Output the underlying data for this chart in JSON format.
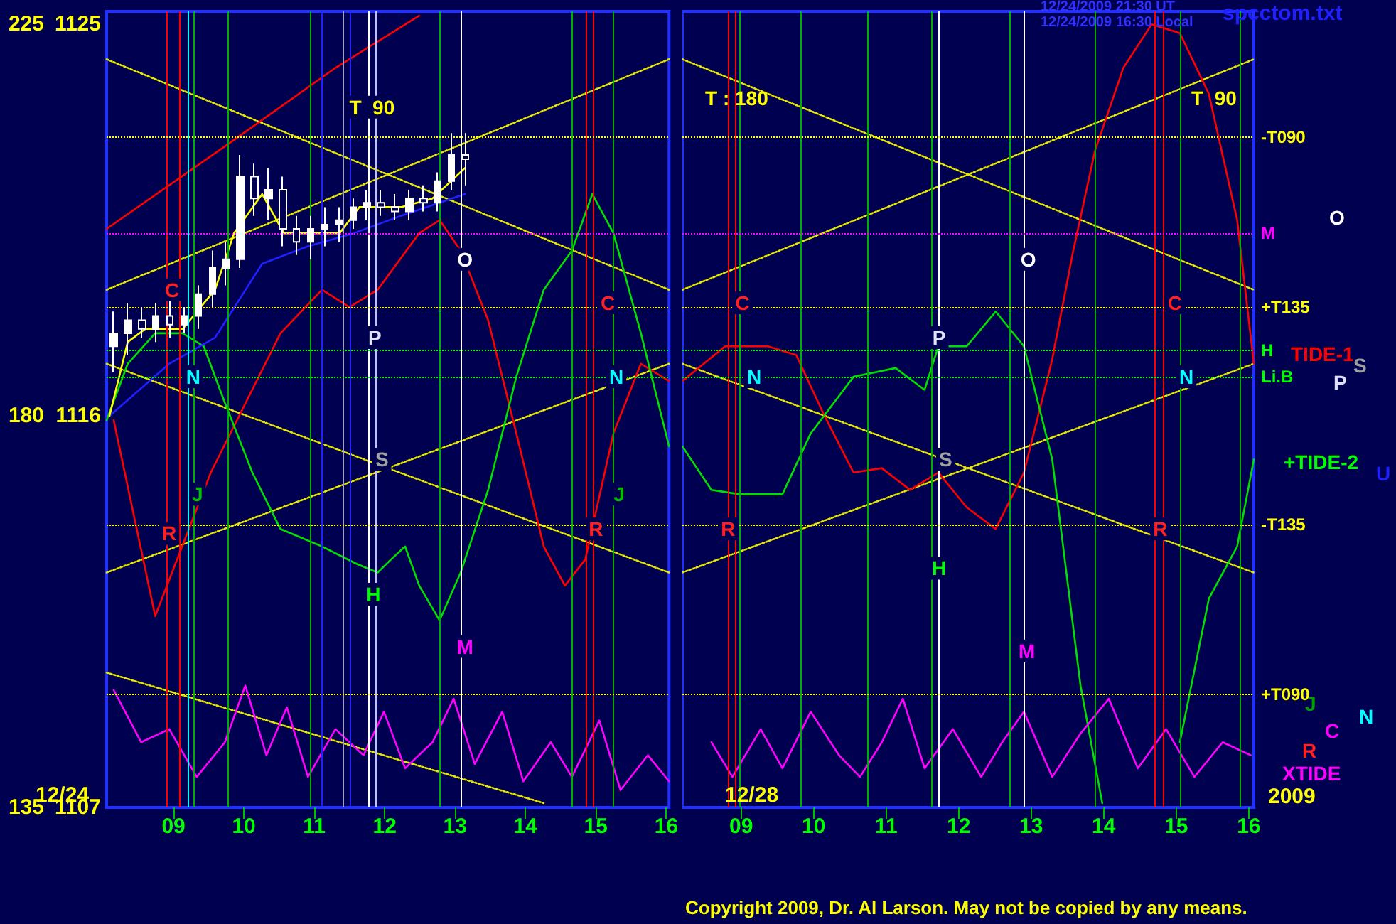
{
  "chart_data": [
    {
      "type": "line",
      "xlim": [
        8.05,
        16.04
      ],
      "ylim": [
        1107,
        1125.3
      ],
      "y2lim": [
        135,
        226.5
      ],
      "xticks": [
        {
          "value": 9,
          "label": "09"
        },
        10,
        11,
        12,
        13,
        14,
        15,
        16
      ],
      "yticks": [
        1107,
        1116,
        1125
      ],
      "y2ticks": [
        135,
        180,
        225
      ],
      "grid": false,
      "marker": "none",
      "line_style": "solid",
      "series": [
        {
          "line_style": "dotted",
          "color": "#e8e800",
          "x": [
            8.05,
            16.04
          ],
          "values": [
            1124.2,
            1118.9
          ]
        },
        {
          "line_style": "dotted",
          "color": "#e8e800",
          "x": [
            8.05,
            16.04
          ],
          "values": [
            1118.9,
            1124.2
          ]
        },
        {
          "line_style": "dotted",
          "color": "#e8e800",
          "x": [
            8.05,
            16.04
          ],
          "values": [
            1112.4,
            1117.2
          ]
        },
        {
          "line_style": "dotted",
          "color": "#e8e800",
          "x": [
            8.05,
            16.04
          ],
          "values": [
            1117.2,
            1112.4
          ]
        },
        {
          "line_style": "dotted",
          "color": "#e8e800",
          "x": [
            8.05,
            14.26
          ],
          "values": [
            1110.1,
            1107.1
          ]
        },
        {
          "color": "#ff0000",
          "x": [
            8.05,
            9.82,
            11.3,
            12.49
          ],
          "values": [
            1120.3,
            1122.3,
            1124.0,
            1125.2
          ]
        },
        {
          "color": "#ff0000",
          "x": [
            8.15,
            8.74,
            9.53,
            10.52,
            11.11,
            11.5,
            11.9,
            12.49,
            12.78,
            13.08,
            13.47,
            13.87,
            14.26,
            14.56,
            14.85,
            15.25,
            15.64,
            16.04
          ],
          "values": [
            1115.9,
            1111.4,
            1114.7,
            1117.9,
            1118.9,
            1118.5,
            1118.9,
            1120.2,
            1120.5,
            1119.8,
            1118.2,
            1115.6,
            1113.0,
            1112.1,
            1112.7,
            1115.6,
            1117.2,
            1116.8
          ]
        },
        {
          "color": "#00e000",
          "x": [
            8.05,
            8.35,
            8.74,
            9.13,
            9.43,
            9.73,
            10.12,
            10.52,
            11.11,
            11.6,
            11.9,
            12.09,
            12.29,
            12.49,
            12.78,
            13.08,
            13.47,
            13.87,
            14.26,
            14.66,
            14.95,
            15.25,
            15.64,
            16.04
          ],
          "values": [
            1115.9,
            1117.2,
            1117.9,
            1117.9,
            1117.6,
            1116.3,
            1114.7,
            1113.4,
            1113.0,
            1112.6,
            1112.4,
            1112.7,
            1113.0,
            1112.1,
            1111.3,
            1112.4,
            1114.3,
            1116.9,
            1118.9,
            1119.8,
            1121.1,
            1120.2,
            1117.9,
            1115.3
          ]
        },
        {
          "color": "#ff00ff",
          "x": [
            8.15,
            8.54,
            8.94,
            9.33,
            9.73,
            10.02,
            10.32,
            10.61,
            10.91,
            11.3,
            11.7,
            11.99,
            12.29,
            12.68,
            12.98,
            13.28,
            13.67,
            13.97,
            14.36,
            14.66,
            15.05,
            15.35,
            15.74,
            16.04
          ],
          "values": [
            1109.7,
            1108.5,
            1108.8,
            1107.7,
            1108.5,
            1109.8,
            1108.2,
            1109.3,
            1107.7,
            1108.8,
            1108.2,
            1109.2,
            1107.9,
            1108.5,
            1109.5,
            1108.0,
            1109.2,
            1107.6,
            1108.5,
            1107.7,
            1109.0,
            1107.4,
            1108.2,
            1107.6
          ]
        },
        {
          "color": "#2020ff",
          "x": [
            8.09,
            8.94,
            9.59,
            10.26,
            10.91,
            11.56,
            12.23,
            13.14
          ],
          "values": [
            1116.0,
            1117.2,
            1117.8,
            1119.5,
            1119.9,
            1120.2,
            1120.6,
            1121.1
          ]
        },
        {
          "type": "candlestick",
          "color": "#ffffff",
          "x": [
            8.15,
            8.35,
            8.55,
            8.75,
            8.95,
            9.15,
            9.35,
            9.55,
            9.75,
            9.95,
            10.15,
            10.35,
            10.55,
            10.75,
            10.95,
            11.15,
            11.35,
            11.55,
            11.75,
            11.95,
            12.15,
            12.35,
            12.55,
            12.75,
            12.95,
            13.15
          ],
          "ohlc": [
            [
              1117.6,
              1118.4,
              1117.0,
              1117.9
            ],
            [
              1117.9,
              1118.6,
              1117.4,
              1118.2
            ],
            [
              1118.2,
              1118.5,
              1117.8,
              1118.0
            ],
            [
              1118.0,
              1118.6,
              1117.7,
              1118.3
            ],
            [
              1118.3,
              1118.7,
              1117.8,
              1118.1
            ],
            [
              1118.1,
              1118.5,
              1117.9,
              1118.3
            ],
            [
              1118.3,
              1119.0,
              1118.0,
              1118.8
            ],
            [
              1118.8,
              1119.8,
              1118.5,
              1119.4
            ],
            [
              1119.4,
              1120.0,
              1119.0,
              1119.6
            ],
            [
              1119.6,
              1122.0,
              1119.4,
              1121.5
            ],
            [
              1121.5,
              1121.8,
              1120.6,
              1121.0
            ],
            [
              1121.0,
              1121.7,
              1120.5,
              1121.2
            ],
            [
              1121.2,
              1121.5,
              1119.9,
              1120.3
            ],
            [
              1120.3,
              1120.6,
              1119.7,
              1120.0
            ],
            [
              1120.0,
              1120.6,
              1119.6,
              1120.3
            ],
            [
              1120.3,
              1120.8,
              1119.9,
              1120.4
            ],
            [
              1120.4,
              1120.8,
              1120.0,
              1120.5
            ],
            [
              1120.5,
              1121.0,
              1120.3,
              1120.8
            ],
            [
              1120.8,
              1121.2,
              1120.5,
              1120.9
            ],
            [
              1120.9,
              1121.2,
              1120.6,
              1120.8
            ],
            [
              1120.8,
              1121.1,
              1120.5,
              1120.7
            ],
            [
              1120.7,
              1121.2,
              1120.5,
              1121.0
            ],
            [
              1121.0,
              1121.3,
              1120.7,
              1120.9
            ],
            [
              1120.9,
              1121.6,
              1120.7,
              1121.4
            ],
            [
              1121.4,
              1122.5,
              1121.2,
              1122.0
            ],
            [
              1122.0,
              1122.5,
              1121.3,
              1121.9
            ]
          ]
        },
        {
          "color": "#ffff00",
          "x": [
            8.09,
            8.35,
            8.6,
            9.13,
            9.59,
            9.86,
            10.26,
            10.57,
            10.91,
            11.36,
            11.64,
            12.23,
            12.68,
            13.14
          ],
          "values": [
            1116.0,
            1117.7,
            1118.0,
            1118.0,
            1118.9,
            1120.2,
            1121.1,
            1120.2,
            1120.2,
            1120.2,
            1120.8,
            1120.8,
            1121.0,
            1121.7
          ]
        }
      ],
      "ref_lines": [
        {
          "axis": "x",
          "value": 8.9,
          "label": null,
          "color": "#ff0000"
        },
        {
          "axis": "x",
          "value": 9.08,
          "label": null,
          "color": "#ff0000"
        },
        {
          "axis": "x",
          "value": 14.86,
          "label": null,
          "color": "#ff0000"
        },
        {
          "axis": "x",
          "value": 14.96,
          "label": null,
          "color": "#ff0000"
        },
        {
          "axis": "x",
          "value": 9.28,
          "label": null,
          "color": "#00b000"
        },
        {
          "axis": "x",
          "value": 9.77,
          "label": null,
          "color": "#00b000"
        },
        {
          "axis": "x",
          "value": 10.95,
          "label": null,
          "color": "#00b000"
        },
        {
          "axis": "x",
          "value": 12.79,
          "label": null,
          "color": "#00b000"
        },
        {
          "axis": "x",
          "value": 14.66,
          "label": null,
          "color": "#00b000"
        },
        {
          "axis": "x",
          "value": 15.25,
          "label": null,
          "color": "#00b000"
        },
        {
          "axis": "x",
          "value": 11.78,
          "label": null,
          "color": "#ffffff"
        },
        {
          "axis": "x",
          "value": 11.88,
          "label": null,
          "color": "#c0c0ff"
        },
        {
          "axis": "x",
          "value": 13.08,
          "label": null,
          "color": "#ffffff"
        },
        {
          "axis": "x",
          "value": 11.11,
          "label": null,
          "color": "#2020ff"
        },
        {
          "axis": "x",
          "value": 11.41,
          "label": null,
          "color": "#a0a0d0"
        },
        {
          "axis": "x",
          "value": 11.5,
          "label": null,
          "color": "#2020ff"
        },
        {
          "axis": "x",
          "value": 9.2,
          "label": null,
          "color": "#00ffff"
        },
        {
          "axis": "y",
          "value": 1122.4,
          "label": null,
          "color": "#ffff00",
          "line_style": "dotted"
        },
        {
          "axis": "y",
          "value": 1120.2,
          "label": null,
          "color": "#ff00ff",
          "line_style": "dotted"
        },
        {
          "axis": "y",
          "value": 1118.5,
          "label": null,
          "color": "#ffff00",
          "line_style": "dotted"
        },
        {
          "axis": "y",
          "value": 1117.5,
          "label": null,
          "color": "#00ff00",
          "line_style": "dotted"
        },
        {
          "axis": "y",
          "value": 1116.9,
          "label": null,
          "color": "#00ff00",
          "line_style": "dotted"
        },
        {
          "axis": "y",
          "value": 1113.5,
          "label": null,
          "color": "#ffff00",
          "line_style": "dotted"
        },
        {
          "axis": "y",
          "value": 1109.6,
          "label": null,
          "color": "#ffff00",
          "line_style": "dotted"
        }
      ],
      "annotations": [
        "12/24",
        {
          "text": "C",
          "x": 8.98,
          "y": 1118.9
        },
        {
          "text": "N",
          "x": 9.28,
          "y": 1116.9
        },
        {
          "text": "R",
          "x": 8.94,
          "y": 1113.3
        },
        {
          "text": "J",
          "x": 9.34,
          "y": 1114.2
        },
        {
          "text": "T  90",
          "x": 11.82,
          "y": 1123.1
        },
        {
          "text": "P",
          "x": 11.86,
          "y": 1117.8
        },
        {
          "text": "S",
          "x": 11.96,
          "y": 1115.0
        },
        {
          "text": "H",
          "x": 11.84,
          "y": 1111.9
        },
        {
          "text": "M",
          "x": 13.14,
          "y": 1110.7
        },
        {
          "text": "O",
          "x": 13.14,
          "y": 1119.6
        },
        {
          "text": "C",
          "x": 15.17,
          "y": 1118.6
        },
        {
          "text": "N",
          "x": 15.29,
          "y": 1116.9
        },
        {
          "text": "R",
          "x": 15.0,
          "y": 1113.4
        },
        {
          "text": "J",
          "x": 15.33,
          "y": 1114.2
        }
      ]
    },
    {
      "type": "line",
      "xlim": [
        8.19,
        16.07
      ],
      "ylim": [
        1107,
        1125.3
      ],
      "xticks": [
        {
          "value": 9,
          "label": "09"
        },
        10,
        11,
        12,
        13,
        14,
        15,
        16
      ],
      "yticks": [
        1107,
        1116,
        1125
      ],
      "tick_labels": "x",
      "grid": false,
      "marker": "none",
      "line_style": "solid",
      "series": [
        {
          "line_style": "dotted",
          "color": "#e8e800",
          "x": [
            8.19,
            16.07
          ],
          "values": [
            1118.9,
            1124.2
          ]
        },
        {
          "line_style": "dotted",
          "color": "#e8e800",
          "x": [
            8.19,
            16.07
          ],
          "values": [
            1124.2,
            1118.9
          ]
        },
        {
          "line_style": "dotted",
          "color": "#e8e800",
          "x": [
            8.19,
            16.07
          ],
          "values": [
            1112.4,
            1117.2
          ]
        },
        {
          "line_style": "dotted",
          "color": "#e8e800",
          "x": [
            8.19,
            16.07
          ],
          "values": [
            1117.2,
            1112.4
          ]
        },
        {
          "color": "#ff0000",
          "x": [
            8.19,
            8.78,
            9.37,
            9.76,
            10.15,
            10.55,
            10.94,
            11.33,
            11.72,
            12.11,
            12.51,
            12.9,
            13.29,
            13.58,
            13.88,
            14.27,
            14.66,
            15.05,
            15.45,
            15.84,
            16.07
          ],
          "values": [
            1116.8,
            1117.6,
            1117.6,
            1117.4,
            1116.0,
            1114.7,
            1114.8,
            1114.3,
            1114.7,
            1113.9,
            1113.4,
            1114.7,
            1117.3,
            1119.8,
            1122.1,
            1124.0,
            1125.0,
            1124.8,
            1123.4,
            1120.5,
            1117.2
          ]
        },
        {
          "color": "#00e000",
          "x": [
            8.19,
            8.59,
            8.98,
            9.57,
            9.96,
            10.55,
            11.13,
            11.53,
            11.72,
            12.11,
            12.51,
            12.9,
            13.29,
            13.68,
            13.98,
            14.47,
            15.05,
            15.45,
            15.84,
            16.07
          ],
          "values": [
            1115.3,
            1114.3,
            1114.2,
            1114.2,
            1115.6,
            1116.9,
            1117.1,
            1116.6,
            1117.6,
            1117.6,
            1118.4,
            1117.6,
            1115.0,
            1109.8,
            1107.1,
            null,
            1108.5,
            1111.8,
            1113.0,
            1115.0
          ]
        },
        {
          "color": "#ff00ff",
          "x": [
            8.59,
            8.88,
            9.27,
            9.57,
            9.96,
            10.35,
            10.64,
            10.94,
            11.23,
            11.53,
            11.92,
            12.31,
            12.6,
            12.9,
            13.29,
            13.68,
            14.07,
            14.47,
            14.86,
            15.25,
            15.64,
            16.03
          ],
          "values": [
            1108.5,
            1107.7,
            1108.8,
            1107.9,
            1109.2,
            1108.2,
            1107.7,
            1108.5,
            1109.5,
            1107.9,
            1108.8,
            1107.7,
            1108.5,
            1109.2,
            1107.7,
            1108.7,
            1109.5,
            1107.9,
            1108.8,
            1107.7,
            1108.5,
            1108.2
          ]
        }
      ],
      "ref_lines": [
        {
          "axis": "x",
          "value": 8.82,
          "label": null,
          "color": "#ff0000"
        },
        {
          "axis": "x",
          "value": 8.92,
          "label": null,
          "color": "#ff0000"
        },
        {
          "axis": "x",
          "value": 14.71,
          "label": null,
          "color": "#ff0000"
        },
        {
          "axis": "x",
          "value": 14.82,
          "label": null,
          "color": "#ff0000"
        },
        {
          "axis": "x",
          "value": 8.98,
          "label": null,
          "color": "#00b000"
        },
        {
          "axis": "x",
          "value": 9.82,
          "label": null,
          "color": "#00b000"
        },
        {
          "axis": "x",
          "value": 10.75,
          "label": null,
          "color": "#00b000"
        },
        {
          "axis": "x",
          "value": 11.63,
          "label": null,
          "color": "#00b000"
        },
        {
          "axis": "x",
          "value": 12.71,
          "label": null,
          "color": "#00b000"
        },
        {
          "axis": "x",
          "value": 13.88,
          "label": null,
          "color": "#00b000"
        },
        {
          "axis": "x",
          "value": 15.06,
          "label": null,
          "color": "#00b000"
        },
        {
          "axis": "x",
          "value": 15.88,
          "label": null,
          "color": "#00b000"
        },
        {
          "axis": "x",
          "value": 11.73,
          "label": null,
          "color": "#ffffff"
        },
        {
          "axis": "x",
          "value": 12.9,
          "label": null,
          "color": "#ffffff"
        },
        {
          "axis": "y",
          "value": 1122.4,
          "label": "-T090",
          "color": "#ffff00",
          "line_style": "dotted"
        },
        {
          "axis": "y",
          "value": 1120.2,
          "label": "M",
          "color": "#ff00ff",
          "line_style": "dotted"
        },
        {
          "axis": "y",
          "value": 1118.5,
          "label": "+T135",
          "color": "#ffff00",
          "line_style": "dotted"
        },
        {
          "axis": "y",
          "value": 1117.5,
          "label": "H",
          "color": "#00ff00",
          "line_style": "dotted"
        },
        {
          "axis": "y",
          "value": 1116.9,
          "label": "Li.B",
          "color": "#00ff00",
          "line_style": "dotted"
        },
        {
          "axis": "y",
          "value": 1113.5,
          "label": "-T135",
          "color": "#ffff00",
          "line_style": "dotted"
        },
        {
          "axis": "y",
          "value": 1109.6,
          "label": "+T090",
          "color": "#ffff00",
          "line_style": "dotted"
        }
      ],
      "annotations": [
        "12/24/2009 21:30 UT",
        "12/24/2009 16:30 Local",
        "spcctom.txt",
        "Copyright 2009, Dr. Al Larson. May not be copied by any means.",
        "T : 180",
        "T  90",
        "12/28",
        "O",
        "TIDE-1",
        "P",
        "S",
        "+TIDE-2",
        "U",
        "J",
        "N",
        "C",
        "R",
        "XTIDE",
        "2009",
        {
          "text": "C",
          "x": 9.02,
          "y": 1118.6
        },
        {
          "text": "N",
          "x": 9.18,
          "y": 1116.9
        },
        {
          "text": "R",
          "x": 8.82,
          "y": 1113.4
        },
        {
          "text": "P",
          "x": 11.73,
          "y": 1117.8
        },
        {
          "text": "S",
          "x": 11.82,
          "y": 1115.0
        },
        {
          "text": "H",
          "x": 11.73,
          "y": 1112.5
        },
        {
          "text": "M",
          "x": 12.94,
          "y": 1110.6
        },
        {
          "text": "O",
          "x": 12.96,
          "y": 1119.6
        },
        {
          "text": "C",
          "x": 14.98,
          "y": 1118.6
        },
        {
          "text": "N",
          "x": 15.14,
          "y": 1116.9
        },
        {
          "text": "R",
          "x": 14.78,
          "y": 1113.4
        }
      ]
    }
  ]
}
